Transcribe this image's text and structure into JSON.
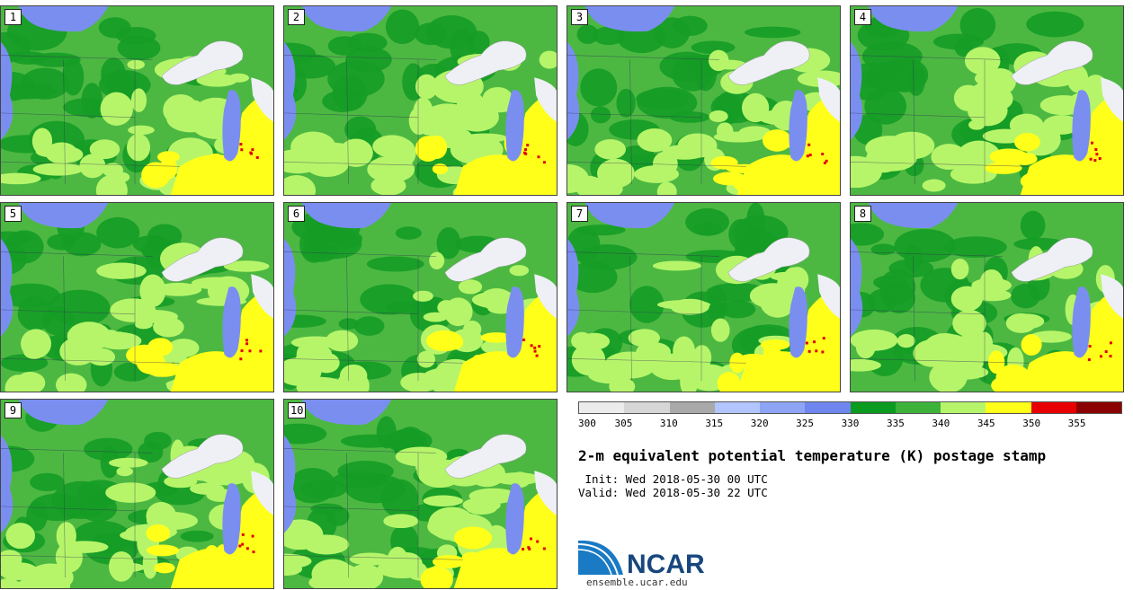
{
  "stamps": [
    {
      "label": "1"
    },
    {
      "label": "2"
    },
    {
      "label": "3"
    },
    {
      "label": "4"
    },
    {
      "label": "5"
    },
    {
      "label": "6"
    },
    {
      "label": "7"
    },
    {
      "label": "8"
    },
    {
      "label": "9"
    },
    {
      "label": "10"
    }
  ],
  "colorbar": {
    "ticks": [
      "300",
      "305",
      "310",
      "315",
      "320",
      "325",
      "330",
      "335",
      "340",
      "345",
      "350",
      "355"
    ],
    "colors": [
      "#ececec",
      "#d6d6d6",
      "#a9a9a9",
      "#b3c5ff",
      "#8ea4f5",
      "#6f86ee",
      "#0a9b20",
      "#3db23a",
      "#b6f56a",
      "#ffff1a",
      "#e80000",
      "#8b0000"
    ]
  },
  "map_colors": {
    "lake": "#7a8ef0",
    "lake_ice": "#eef0f6",
    "base_green": "#4cb842",
    "dark_green": "#159c26",
    "light_green": "#b6f56a",
    "yellow": "#ffff1a",
    "red": "#e00000"
  },
  "title": "2-m equivalent potential temperature (K) postage stamp",
  "init": " Init: Wed 2018-05-30 00 UTC",
  "valid": "Valid: Wed 2018-05-30 22 UTC",
  "logo": {
    "text": "NCAR",
    "url": "ensemble.ucar.edu"
  }
}
